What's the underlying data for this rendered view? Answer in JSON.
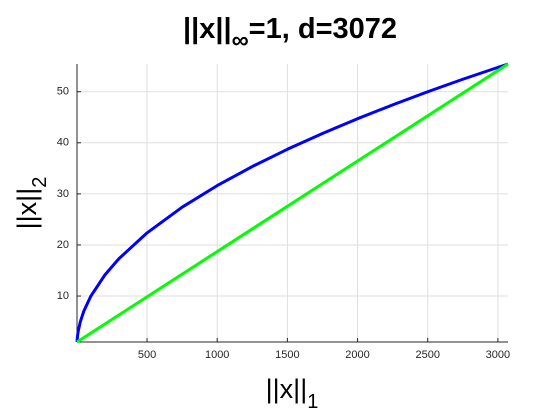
{
  "chart_data": {
    "type": "line",
    "title": [
      "||x||",
      "∞",
      "=1, d=3072"
    ],
    "xlabel": [
      "||x||",
      "1"
    ],
    "ylabel": [
      "||x||",
      "2"
    ],
    "series": [
      {
        "color": "#0000ff",
        "x": [
          1,
          5,
          10,
          25,
          50,
          100,
          200,
          300,
          500,
          750,
          1000,
          1250,
          1500,
          1750,
          2000,
          2250,
          2500,
          2750,
          3072
        ],
        "values": [
          1,
          2.24,
          3.16,
          5,
          7.07,
          10,
          14.14,
          17.32,
          22.36,
          27.39,
          31.62,
          35.36,
          38.73,
          41.83,
          44.72,
          47.43,
          50,
          52.44,
          55.43
        ]
      },
      {
        "color": "#00ff00",
        "x": [
          1,
          3072
        ],
        "values": [
          1,
          55.43
        ]
      }
    ],
    "xlim": [
      1,
      3072
    ],
    "xticks": [
      500,
      1000,
      1500,
      2000,
      2500,
      3000
    ],
    "ylim": [
      1,
      55.43
    ],
    "yticks": [
      10,
      20,
      30,
      40,
      50
    ],
    "grid": true
  }
}
